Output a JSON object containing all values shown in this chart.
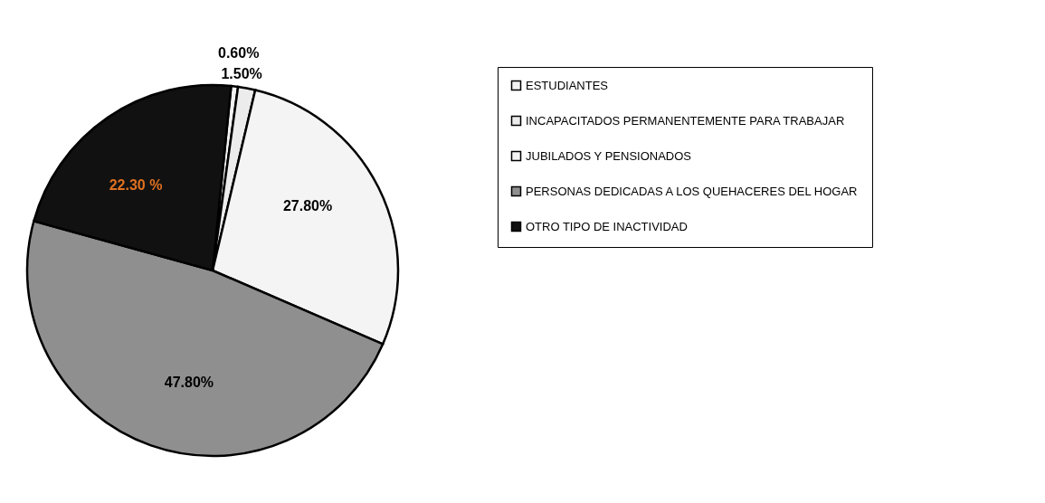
{
  "chart_data": {
    "type": "pie",
    "categories": [
      "ESTUDIANTES",
      "INCAPACITADOS PERMANENTEMENTE PARA TRABAJAR",
      "JUBILADOS Y PENSIONADOS",
      "PERSONAS DEDICADAS A LOS QUEHACERES DEL HOGAR",
      "OTRO TIPO DE INACTIVIDAD"
    ],
    "values": [
      0.6,
      1.5,
      27.8,
      47.8,
      22.3
    ],
    "colors": [
      "#f2f2f2",
      "#ececec",
      "#f4f4f4",
      "#8f8f8f",
      "#111111"
    ],
    "value_labels": [
      "0.60%",
      "1.50%",
      "27.80%",
      "47.80%",
      "22.30 %"
    ],
    "legend": "right"
  }
}
